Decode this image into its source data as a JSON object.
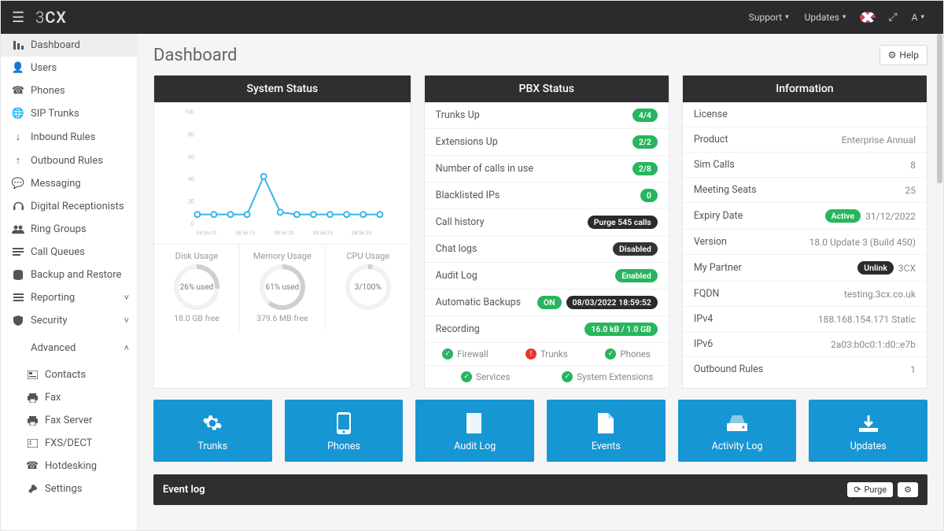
{
  "topbar": {
    "brand_prefix": "3",
    "brand_suffix": "CX",
    "support": "Support",
    "updates": "Updates",
    "expand_icon": "⤢",
    "user_letter": "A"
  },
  "sidebar": {
    "items": [
      {
        "icon": "bars",
        "label": "Dashboard",
        "active": true
      },
      {
        "icon": "user",
        "label": "Users"
      },
      {
        "icon": "phone",
        "label": "Phones"
      },
      {
        "icon": "globe",
        "label": "SIP Trunks"
      },
      {
        "icon": "arrow-down",
        "label": "Inbound Rules"
      },
      {
        "icon": "arrow-up",
        "label": "Outbound Rules"
      },
      {
        "icon": "chat",
        "label": "Messaging"
      },
      {
        "icon": "headset",
        "label": "Digital Receptionists"
      },
      {
        "icon": "group",
        "label": "Ring Groups"
      },
      {
        "icon": "queue",
        "label": "Call Queues"
      },
      {
        "icon": "db",
        "label": "Backup and Restore"
      },
      {
        "icon": "list",
        "label": "Reporting",
        "caret": "down"
      },
      {
        "icon": "shield",
        "label": "Security",
        "caret": "down"
      },
      {
        "icon": "gear",
        "label": "Advanced",
        "caret": "up"
      }
    ],
    "advanced_children": [
      {
        "icon": "card",
        "label": "Contacts"
      },
      {
        "icon": "printer",
        "label": "Fax"
      },
      {
        "icon": "printer",
        "label": "Fax Server"
      },
      {
        "icon": "dev",
        "label": "FXS/DECT"
      },
      {
        "icon": "phone",
        "label": "Hotdesking"
      },
      {
        "icon": "wrench",
        "label": "Settings"
      }
    ]
  },
  "page": {
    "title": "Dashboard",
    "help": "Help"
  },
  "system_status": {
    "title": "System Status",
    "chart": {
      "type": "line",
      "y_max": 100,
      "y_ticks": [
        0,
        20,
        40,
        60,
        80,
        100
      ],
      "x_labels": [
        "08:56:10",
        "08:56:15",
        "08:56:20",
        "08:56:25",
        "08:56:30"
      ],
      "points": [
        8,
        8,
        8,
        8,
        42,
        10,
        8,
        8,
        8,
        8,
        8,
        8
      ],
      "line_color": "#38b6e8",
      "marker_color": "#ffffff",
      "marker_border": "#38b6e8",
      "axis_color": "#d9d9d9",
      "label_color": "#bdbdbd"
    },
    "gauges": [
      {
        "title": "Disk Usage",
        "percent": 26,
        "center": "26% used",
        "sub": "18.0 GB free",
        "color": "#cfcfcf"
      },
      {
        "title": "Memory Usage",
        "percent": 61,
        "center": "61% used",
        "sub": "379.6 MB free",
        "color": "#cfcfcf"
      },
      {
        "title": "CPU Usage",
        "percent": 3,
        "center": "3/100%",
        "sub": "",
        "color": "#cfcfcf"
      }
    ]
  },
  "pbx_status": {
    "title": "PBX Status",
    "rows": [
      {
        "k": "Trunks Up",
        "badges": [
          {
            "text": "4/4",
            "style": "green"
          }
        ]
      },
      {
        "k": "Extensions Up",
        "badges": [
          {
            "text": "2/2",
            "style": "green"
          }
        ]
      },
      {
        "k": "Number of calls in use",
        "badges": [
          {
            "text": "2/8",
            "style": "green"
          }
        ]
      },
      {
        "k": "Blacklisted IPs",
        "badges": [
          {
            "text": "0",
            "style": "green"
          }
        ]
      },
      {
        "k": "Call history",
        "badges": [
          {
            "text": "Purge 545 calls",
            "style": "dark"
          }
        ]
      },
      {
        "k": "Chat logs",
        "badges": [
          {
            "text": "Disabled",
            "style": "dark2"
          }
        ]
      },
      {
        "k": "Audit Log",
        "badges": [
          {
            "text": "Enabled",
            "style": "green"
          }
        ]
      },
      {
        "k": "Automatic Backups",
        "badges": [
          {
            "text": "ON",
            "style": "green"
          },
          {
            "text": "08/03/2022 18:59:52",
            "style": "dark"
          }
        ]
      },
      {
        "k": "Recording",
        "badges": [
          {
            "text": "16.0 kB / 1.0 GB",
            "style": "green"
          }
        ]
      }
    ],
    "checks_row1": [
      {
        "label": "Firewall",
        "state": "green"
      },
      {
        "label": "Trunks",
        "state": "red"
      },
      {
        "label": "Phones",
        "state": "green"
      }
    ],
    "checks_row2": [
      {
        "label": "Services",
        "state": "green"
      },
      {
        "label": "System Extensions",
        "state": "green"
      }
    ]
  },
  "info": {
    "title": "Information",
    "rows": [
      {
        "k": "License",
        "v": ""
      },
      {
        "k": "Product",
        "v": "Enterprise Annual"
      },
      {
        "k": "Sim Calls",
        "v": "8"
      },
      {
        "k": "Meeting Seats",
        "v": "25"
      },
      {
        "k": "Expiry Date",
        "v": "31/12/2022",
        "badge": {
          "text": "Active",
          "style": "green"
        }
      },
      {
        "k": "Version",
        "v": "18.0 Update 3 (Build 450)"
      },
      {
        "k": "My Partner",
        "v": "3CX",
        "badge": {
          "text": "Unlink",
          "style": "dark"
        }
      },
      {
        "k": "FQDN",
        "v": "testing.3cx.co.uk"
      },
      {
        "k": "IPv4",
        "v": "188.168.154.171 Static"
      },
      {
        "k": "IPv6",
        "v": "2a03:b0c0:1:d0::e7b"
      },
      {
        "k": "Outbound Rules",
        "v": "1"
      }
    ]
  },
  "tiles": [
    {
      "icon": "gear",
      "label": "Trunks"
    },
    {
      "icon": "phone-device",
      "label": "Phones"
    },
    {
      "icon": "book",
      "label": "Audit Log"
    },
    {
      "icon": "file",
      "label": "Events"
    },
    {
      "icon": "drive",
      "label": "Activity Log"
    },
    {
      "icon": "download",
      "label": "Updates"
    }
  ],
  "eventlog": {
    "title": "Event log",
    "purge": "Purge"
  },
  "colors": {
    "topbar_bg": "#2b2b2b",
    "panel_header_bg": "#2f2f2f",
    "tile_bg": "#1796d4",
    "badge_green": "#27b55d",
    "badge_dark": "#2b2b2b",
    "page_bg": "#f5f5f5"
  }
}
